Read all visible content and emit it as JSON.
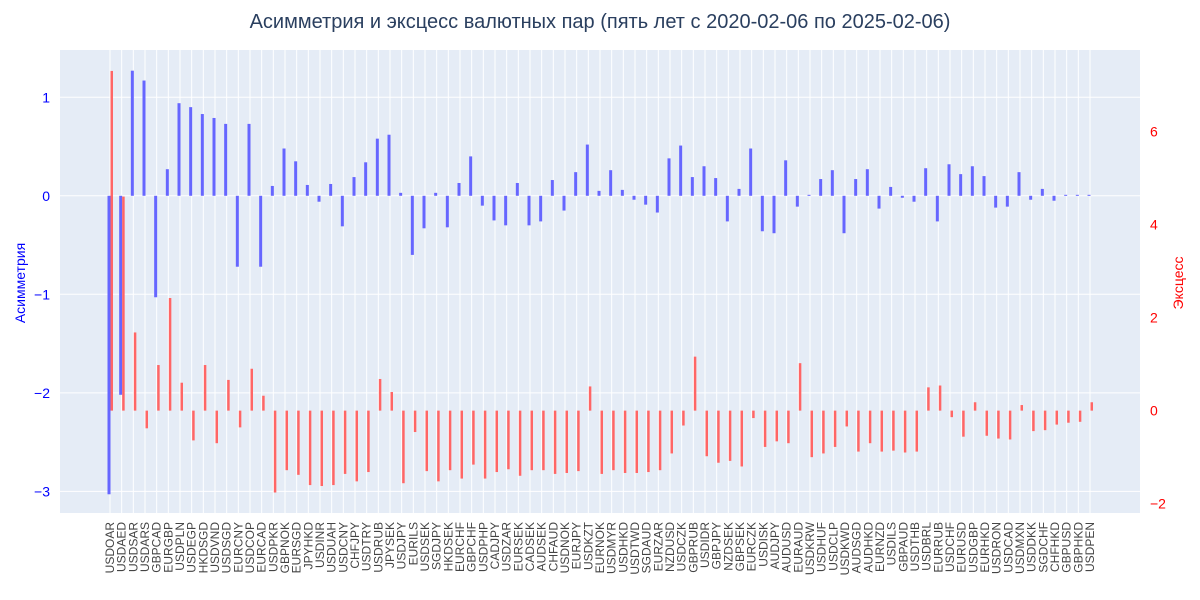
{
  "chart_data": {
    "type": "bar",
    "title": "Асимметрия и эксцесс валютных пар (пять лет с 2020-02-06 по 2025-02-06)",
    "ylabel_left": "Асимметрия",
    "ylabel_right": "Эксцесс",
    "ylim_left": [
      -3.22,
      1.48
    ],
    "ylim_right": [
      -2.2,
      7.75
    ],
    "yticks_left": [
      1,
      0,
      -1,
      -2,
      -3
    ],
    "ytick_labels_left": [
      "1",
      "0",
      "−1",
      "−2",
      "−3"
    ],
    "yticks_right": [
      6,
      4,
      2,
      0,
      -2
    ],
    "ytick_labels_right": [
      "6",
      "4",
      "2",
      "0",
      "−2"
    ],
    "grid": true,
    "colors": {
      "skew": "#6666ff",
      "kurt": "#ff6666",
      "plot_bg": "#e5ecf6",
      "title": "#2a3f5f"
    },
    "categories": [
      "USDOAR",
      "USDAED",
      "USDSAR",
      "USDARS",
      "GBPCAD",
      "EURGBP",
      "USDPLN",
      "USDEGP",
      "HKDSGD",
      "USDVND",
      "USDSGD",
      "EURCNY",
      "USDCOP",
      "EURCAD",
      "USDPKR",
      "GBPNOK",
      "EURSGD",
      "JPYHKD",
      "USDINR",
      "USDUAH",
      "USDCNY",
      "CHFJPY",
      "USDTRY",
      "USDRUB",
      "JPYSEK",
      "USDJPY",
      "EURILS",
      "USDSEK",
      "SGDJPY",
      "HKDSEK",
      "EURCHF",
      "GBPCHF",
      "USDPHP",
      "CADJPY",
      "USDZAR",
      "EURSEK",
      "CADSEK",
      "AUDSEK",
      "CHFAUD",
      "USDNOK",
      "EURJPY",
      "USDKZT",
      "EURNOK",
      "USDMYR",
      "USDHKD",
      "USDTWD",
      "SGDAUD",
      "EURZAR",
      "NZDUSD",
      "USDCZK",
      "GBPRUB",
      "USDIDR",
      "GBPJPY",
      "NZDSEK",
      "GBPSEK",
      "EURCZK",
      "USDISK",
      "AUDJPY",
      "AUDUSD",
      "EURAUD",
      "USDKRW",
      "USDHUF",
      "USDCLP",
      "USDKWD",
      "AUDSGD",
      "AUDHKD",
      "EURNZD",
      "USDILS",
      "GBPAUD",
      "USDTHB",
      "USDBRL",
      "EURRUB",
      "USDCHF",
      "EURUSD",
      "USDGBP",
      "EURHKD",
      "USDRON",
      "USDCAD",
      "USDMXN",
      "USDDKK",
      "SGDCHF",
      "CHFHKD",
      "GBPUSD",
      "GBPHKD",
      "USDPEN"
    ],
    "series": [
      {
        "name": "Асимметрия",
        "axis": "left",
        "values": [
          -3.03,
          -2.02,
          1.27,
          1.17,
          -1.03,
          0.27,
          0.94,
          0.9,
          0.83,
          0.79,
          0.73,
          -0.72,
          0.73,
          -0.72,
          0.1,
          0.48,
          0.35,
          0.11,
          -0.06,
          0.12,
          -0.31,
          0.19,
          0.34,
          0.58,
          0.62,
          0.03,
          -0.6,
          -0.33,
          0.03,
          -0.32,
          0.13,
          0.4,
          -0.1,
          -0.25,
          -0.3,
          0.13,
          -0.3,
          -0.26,
          0.16,
          -0.15,
          0.24,
          0.52,
          0.05,
          0.26,
          0.06,
          -0.04,
          -0.09,
          -0.17,
          0.38,
          0.51,
          0.19,
          0.3,
          0.18,
          -0.26,
          0.07,
          0.48,
          -0.36,
          -0.38,
          0.36,
          -0.11,
          0.01,
          0.17,
          0.26,
          -0.38,
          0.17,
          0.27,
          -0.13,
          0.09,
          -0.02,
          -0.06,
          0.28,
          -0.26,
          0.32,
          0.22,
          0.3,
          0.2,
          -0.12,
          -0.11,
          0.24,
          -0.04,
          0.07,
          -0.05,
          0.01,
          0.01,
          0.01
        ]
      },
      {
        "name": "Эксцесс",
        "axis": "right",
        "values": [
          7.3,
          4.6,
          1.68,
          -0.38,
          0.98,
          2.42,
          0.6,
          -0.64,
          0.98,
          -0.7,
          0.66,
          -0.36,
          0.9,
          0.32,
          -1.76,
          -1.28,
          -1.38,
          -1.6,
          -1.62,
          -1.6,
          -1.36,
          -1.52,
          -1.32,
          0.68,
          0.4,
          -1.56,
          -0.46,
          -1.3,
          -1.52,
          -1.28,
          -1.46,
          -1.16,
          -1.46,
          -1.32,
          -1.26,
          -1.4,
          -1.28,
          -1.28,
          -1.36,
          -1.34,
          -1.3,
          0.52,
          -1.36,
          -1.28,
          -1.34,
          -1.34,
          -1.32,
          -1.28,
          -0.92,
          -0.32,
          1.16,
          -0.98,
          -1.12,
          -1.08,
          -1.2,
          -0.16,
          -0.78,
          -0.66,
          -0.7,
          1.02,
          -1.0,
          -0.92,
          -0.78,
          -0.34,
          -0.88,
          -0.7,
          -0.88,
          -0.86,
          -0.9,
          -0.88,
          0.5,
          0.54,
          -0.14,
          -0.56,
          0.18,
          -0.54,
          -0.6,
          -0.62,
          0.12,
          -0.44,
          -0.42,
          -0.3,
          -0.26,
          -0.24,
          0.18
        ]
      }
    ]
  }
}
